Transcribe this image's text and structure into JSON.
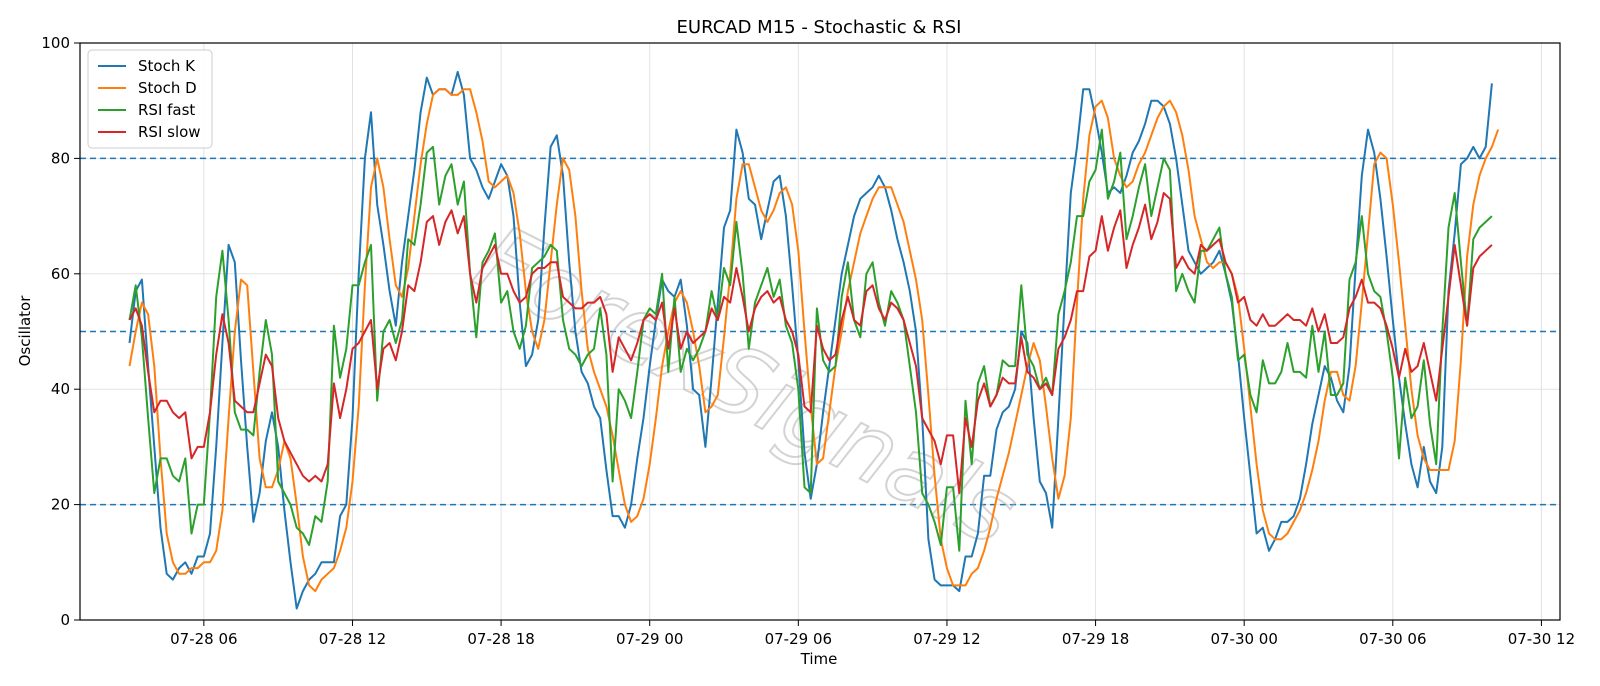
{
  "chart_data": {
    "type": "line",
    "title": "EURCAD M15 - Stochastic & RSI",
    "xlabel": "Time",
    "ylabel": "Oscillator",
    "ylim": [
      0,
      100
    ],
    "xlim": [
      "07-28 01:00",
      "07-30 12:45"
    ],
    "x_start": "07-28 03:00",
    "x_step_minutes": 15,
    "x_ticks": [
      "07-28 06",
      "07-28 12",
      "07-28 18",
      "07-29 00",
      "07-29 06",
      "07-29 12",
      "07-29 18",
      "07-30 00",
      "07-30 06",
      "07-30 12"
    ],
    "y_ticks": [
      0,
      20,
      40,
      60,
      80,
      100
    ],
    "grid": true,
    "legend_position": "top-left",
    "watermark": "ForexSignals",
    "reference_lines": [
      {
        "y": 80,
        "style": "dashed",
        "color": "#1f77b4"
      },
      {
        "y": 50,
        "style": "dashed",
        "color": "#1f77b4"
      },
      {
        "y": 20,
        "style": "dashed",
        "color": "#1f77b4"
      }
    ],
    "series": [
      {
        "name": "Stoch K",
        "color": "#1f77b4",
        "values": [
          48,
          57,
          59,
          44,
          30,
          16,
          8,
          7,
          9,
          10,
          8,
          11,
          11,
          15,
          30,
          48,
          65,
          62,
          45,
          30,
          17,
          22,
          31,
          36,
          30,
          19,
          10,
          2,
          5,
          7,
          8,
          10,
          10,
          10,
          18,
          20,
          35,
          60,
          80,
          88,
          72,
          65,
          57,
          51,
          62,
          70,
          78,
          88,
          94,
          91,
          92,
          92,
          91,
          95,
          91,
          80,
          78,
          75,
          73,
          76,
          79,
          77,
          70,
          55,
          44,
          46,
          52,
          68,
          82,
          84,
          77,
          62,
          50,
          43,
          41,
          37,
          35,
          26,
          18,
          18,
          16,
          20,
          28,
          35,
          44,
          52,
          59,
          57,
          56,
          59,
          51,
          40,
          39,
          30,
          42,
          55,
          68,
          71,
          85,
          81,
          73,
          72,
          66,
          71,
          76,
          77,
          70,
          58,
          45,
          29,
          21,
          27,
          36,
          44,
          52,
          60,
          65,
          70,
          73,
          74,
          75,
          77,
          75,
          71,
          66,
          62,
          57,
          50,
          35,
          14,
          7,
          6,
          6,
          6,
          5,
          11,
          11,
          15,
          25,
          25,
          33,
          36,
          37,
          40,
          50,
          48,
          35,
          24,
          22,
          16,
          35,
          55,
          74,
          82,
          92,
          92,
          87,
          81,
          74,
          75,
          74,
          77,
          81,
          83,
          86,
          90,
          90,
          89,
          86,
          80,
          72,
          64,
          62,
          60,
          61,
          62,
          64,
          60,
          55,
          46,
          35,
          25,
          15,
          16,
          12,
          14,
          17,
          17,
          18,
          21,
          27,
          34,
          39,
          44,
          42,
          38,
          36,
          44,
          61,
          77,
          85,
          81,
          73,
          63,
          52,
          42,
          34,
          27,
          23,
          30,
          24,
          22,
          30,
          57,
          67,
          79,
          80,
          82,
          80,
          82,
          93
        ]
      },
      {
        "name": "Stoch D",
        "color": "#ff7f0e",
        "values": [
          44,
          50,
          55,
          53,
          44,
          28,
          15,
          10,
          8,
          8,
          9,
          9,
          10,
          10,
          12,
          19,
          35,
          50,
          59,
          58,
          43,
          28,
          23,
          23,
          26,
          31,
          28,
          20,
          11,
          6,
          5,
          7,
          8,
          9,
          12,
          16,
          24,
          37,
          58,
          75,
          80,
          75,
          66,
          58,
          56,
          61,
          70,
          79,
          86,
          91,
          92,
          92,
          91,
          91,
          92,
          92,
          88,
          83,
          76,
          75,
          76,
          77,
          74,
          67,
          57,
          50,
          47,
          52,
          62,
          72,
          80,
          78,
          70,
          57,
          47,
          43,
          40,
          37,
          32,
          26,
          20,
          17,
          18,
          21,
          27,
          35,
          44,
          50,
          55,
          57,
          55,
          50,
          44,
          36,
          37,
          39,
          49,
          60,
          73,
          79,
          79,
          75,
          71,
          69,
          71,
          74,
          75,
          72,
          64,
          50,
          37,
          27,
          28,
          36,
          44,
          50,
          57,
          62,
          67,
          70,
          73,
          75,
          75,
          75,
          72,
          69,
          64,
          59,
          52,
          39,
          25,
          14,
          9,
          6,
          6,
          6,
          8,
          9,
          12,
          16,
          21,
          25,
          29,
          34,
          39,
          44,
          48,
          45,
          37,
          28,
          21,
          25,
          35,
          55,
          73,
          84,
          89,
          90,
          87,
          80,
          77,
          75,
          76,
          79,
          81,
          84,
          87,
          89,
          90,
          88,
          84,
          78,
          70,
          66,
          62,
          61,
          62,
          62,
          60,
          56,
          47,
          37,
          27,
          19,
          15,
          14,
          14,
          15,
          17,
          19,
          22,
          26,
          31,
          38,
          43,
          43,
          39,
          38,
          44,
          55,
          67,
          79,
          81,
          80,
          72,
          62,
          51,
          40,
          32,
          28,
          26,
          26,
          26,
          26,
          31,
          45,
          63,
          72,
          77,
          80,
          82,
          85
        ]
      },
      {
        "name": "RSI fast",
        "color": "#2ca02c",
        "values": [
          52,
          58,
          49,
          35,
          22,
          28,
          28,
          25,
          24,
          28,
          15,
          20,
          20,
          36,
          56,
          64,
          52,
          36,
          33,
          33,
          32,
          43,
          52,
          46,
          24,
          22,
          20,
          16,
          15,
          13,
          18,
          17,
          24,
          51,
          42,
          47,
          58,
          58,
          62,
          65,
          38,
          50,
          52,
          48,
          52,
          66,
          65,
          72,
          81,
          82,
          72,
          77,
          79,
          72,
          76,
          60,
          49,
          62,
          64,
          67,
          55,
          57,
          50,
          47,
          51,
          61,
          62,
          63,
          65,
          64,
          52,
          47,
          46,
          44,
          46,
          47,
          54,
          46,
          24,
          40,
          38,
          35,
          43,
          52,
          54,
          53,
          60,
          43,
          56,
          43,
          47,
          45,
          47,
          50,
          57,
          52,
          61,
          58,
          69,
          60,
          47,
          55,
          58,
          61,
          56,
          59,
          51,
          48,
          40,
          23,
          22,
          54,
          45,
          43,
          44,
          56,
          62,
          52,
          49,
          60,
          62,
          55,
          51,
          57,
          55,
          52,
          44,
          36,
          22,
          20,
          17,
          13,
          23,
          23,
          12,
          38,
          27,
          41,
          44,
          37,
          39,
          45,
          44,
          44,
          58,
          46,
          44,
          40,
          42,
          39,
          53,
          57,
          62,
          70,
          70,
          76,
          78,
          85,
          73,
          76,
          81,
          66,
          70,
          75,
          79,
          70,
          75,
          80,
          78,
          57,
          60,
          57,
          55,
          64,
          64,
          66,
          68,
          60,
          56,
          45,
          46,
          39,
          36,
          45,
          41,
          41,
          43,
          48,
          43,
          43,
          42,
          51,
          43,
          50,
          39,
          39,
          41,
          59,
          62,
          70,
          60,
          57,
          56,
          50,
          42,
          28,
          42,
          35,
          37,
          45,
          34,
          27,
          50,
          68,
          74,
          62,
          51,
          66,
          68,
          69,
          70
        ]
      },
      {
        "name": "RSI slow",
        "color": "#d62728",
        "values": [
          52,
          54,
          51,
          43,
          36,
          38,
          38,
          36,
          35,
          36,
          28,
          30,
          30,
          36,
          46,
          53,
          48,
          38,
          37,
          36,
          36,
          41,
          46,
          44,
          35,
          31,
          29,
          27,
          25,
          24,
          25,
          24,
          27,
          41,
          35,
          40,
          47,
          48,
          50,
          52,
          40,
          47,
          48,
          45,
          50,
          58,
          57,
          62,
          69,
          70,
          65,
          69,
          71,
          67,
          70,
          60,
          55,
          61,
          63,
          65,
          60,
          60,
          57,
          55,
          56,
          60,
          61,
          61,
          62,
          62,
          56,
          55,
          54,
          54,
          55,
          55,
          56,
          53,
          43,
          49,
          47,
          45,
          48,
          52,
          53,
          52,
          55,
          47,
          54,
          47,
          50,
          48,
          49,
          50,
          54,
          52,
          56,
          55,
          61,
          56,
          50,
          54,
          56,
          57,
          55,
          56,
          52,
          50,
          46,
          37,
          36,
          51,
          47,
          45,
          46,
          52,
          56,
          52,
          51,
          57,
          58,
          54,
          52,
          55,
          54,
          52,
          48,
          44,
          35,
          33,
          31,
          27,
          32,
          32,
          22,
          35,
          30,
          38,
          41,
          37,
          39,
          42,
          41,
          41,
          49,
          43,
          42,
          40,
          41,
          39,
          47,
          49,
          52,
          57,
          57,
          63,
          64,
          70,
          64,
          68,
          71,
          61,
          65,
          68,
          72,
          66,
          69,
          74,
          73,
          61,
          63,
          61,
          60,
          65,
          64,
          65,
          66,
          62,
          60,
          55,
          56,
          52,
          51,
          53,
          51,
          51,
          52,
          53,
          52,
          52,
          51,
          54,
          50,
          53,
          48,
          48,
          49,
          54,
          56,
          59,
          55,
          55,
          54,
          51,
          47,
          42,
          47,
          43,
          44,
          48,
          43,
          38,
          47,
          56,
          65,
          58,
          51,
          61,
          63,
          64,
          65
        ]
      }
    ]
  }
}
